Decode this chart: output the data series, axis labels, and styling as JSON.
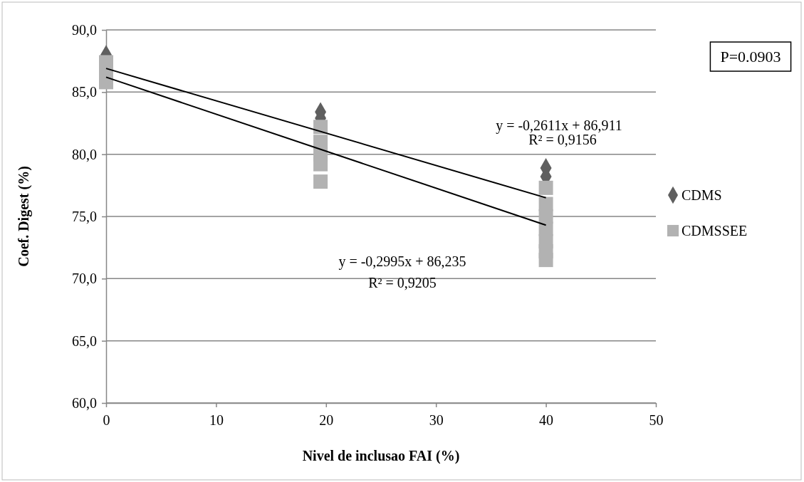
{
  "chart_data": {
    "type": "scatter",
    "xlabel": "Nivel de inclusao FAI (%)",
    "ylabel": "Coef. Digest (%)",
    "xlim": [
      0,
      50
    ],
    "xticks": [
      0,
      10,
      20,
      30,
      40,
      50
    ],
    "ylim": [
      60,
      90
    ],
    "yticks": [
      {
        "value": 60,
        "label": "60,0"
      },
      {
        "value": 65,
        "label": "65,0"
      },
      {
        "value": 70,
        "label": "70,0"
      },
      {
        "value": 75,
        "label": "75,0"
      },
      {
        "value": 80,
        "label": "80,0"
      },
      {
        "value": 85,
        "label": "85,0"
      },
      {
        "value": 90,
        "label": "90,0"
      }
    ],
    "grid": "y",
    "legend": "right",
    "series": [
      {
        "name": "CDMS",
        "marker": "diamond",
        "color": "#5f5f5f",
        "x": [
          0,
          19.5,
          19.5,
          40,
          40
        ],
        "values": [
          88.0,
          83.4,
          82.9,
          78.9,
          78.2
        ]
      },
      {
        "name": "CDMSSEE",
        "marker": "square",
        "color": "#b2b2b2",
        "x": [
          0,
          0,
          0,
          19.5,
          19.5,
          19.5,
          19.5,
          19.5,
          40,
          40,
          40,
          40,
          40,
          40,
          40
        ],
        "values": [
          87.4,
          86.8,
          85.8,
          82.2,
          81.0,
          80.0,
          79.2,
          77.8,
          77.3,
          76.0,
          75.0,
          74.0,
          73.0,
          72.2,
          71.5
        ]
      },
      {
        "type": "line",
        "color": "#000000",
        "x": [
          0,
          40
        ],
        "values": [
          86.9,
          76.5
        ]
      },
      {
        "type": "line",
        "color": "#000000",
        "x": [
          0,
          40
        ],
        "values": [
          86.2,
          74.3
        ]
      }
    ],
    "annotations": [
      "y = -0,2611x + 86,911",
      "R² = 0,9156",
      "y = -0,2995x + 86,235",
      "R² = 0,9205",
      "P=0.0903"
    ]
  }
}
